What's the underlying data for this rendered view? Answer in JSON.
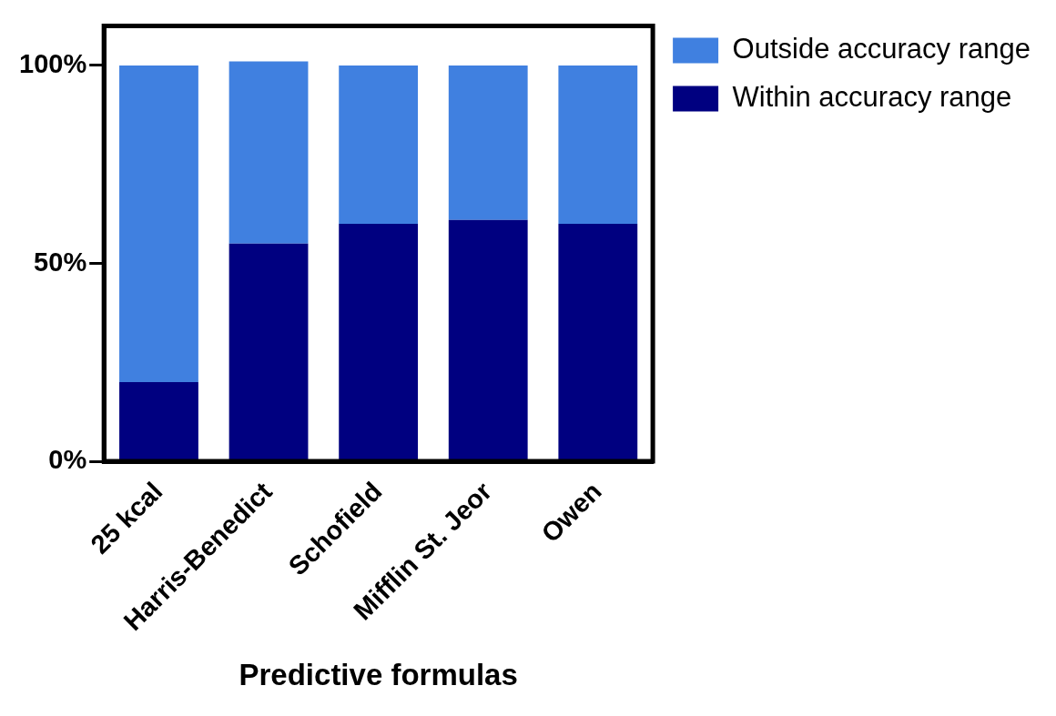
{
  "chart_data": {
    "type": "bar",
    "stacked": true,
    "xlabel": "Predictive formulas",
    "categories": [
      "25 kcal",
      "Harris-Benedict",
      "Schofield",
      "Mifflin St. Jeor",
      "Owen"
    ],
    "series": [
      {
        "name": "Within accuracy range",
        "color": "#000080",
        "values": [
          20,
          55,
          60,
          61,
          60
        ]
      },
      {
        "name": "Outside accuracy range",
        "color": "#4080e0",
        "values": [
          80,
          46,
          40,
          39,
          40
        ]
      }
    ],
    "ylim": [
      0,
      110
    ],
    "yticks": [
      {
        "value": 0,
        "label": "0%"
      },
      {
        "value": 50,
        "label": "50%"
      },
      {
        "value": 100,
        "label": "100%"
      }
    ],
    "grid": false,
    "legend": "top right"
  }
}
